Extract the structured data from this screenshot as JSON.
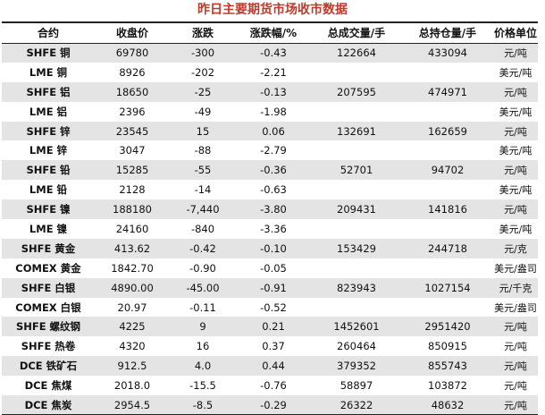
{
  "title": "昨日主要期货市场收市数据",
  "columns": {
    "contract": "合约",
    "close": "收盘价",
    "change": "涨跌",
    "change_pct": "涨跌幅/%",
    "volume": "总成交量/手",
    "open_interest": "总持仓量/手",
    "unit": "价格单位"
  },
  "rows": [
    {
      "contract": "SHFE 铜",
      "close": "69780",
      "change": "-300",
      "change_pct": "-0.43",
      "volume": "122664",
      "open_interest": "433094",
      "unit": "元/吨"
    },
    {
      "contract": "LME 铜",
      "close": "8926",
      "change": "-202",
      "change_pct": "-2.21",
      "volume": "",
      "open_interest": "",
      "unit": "美元/吨"
    },
    {
      "contract": "SHFE 铝",
      "close": "18650",
      "change": "-25",
      "change_pct": "-0.13",
      "volume": "207595",
      "open_interest": "474971",
      "unit": "元/吨"
    },
    {
      "contract": "LME 铝",
      "close": "2396",
      "change": "-49",
      "change_pct": "-1.98",
      "volume": "",
      "open_interest": "",
      "unit": "美元/吨"
    },
    {
      "contract": "SHFE 锌",
      "close": "23545",
      "change": "15",
      "change_pct": "0.06",
      "volume": "132691",
      "open_interest": "162659",
      "unit": "元/吨"
    },
    {
      "contract": "LME 锌",
      "close": "3047",
      "change": "-88",
      "change_pct": "-2.79",
      "volume": "",
      "open_interest": "",
      "unit": "美元/吨"
    },
    {
      "contract": "SHFE 铅",
      "close": "15285",
      "change": "-55",
      "change_pct": "-0.36",
      "volume": "52701",
      "open_interest": "94702",
      "unit": "元/吨"
    },
    {
      "contract": "LME 铅",
      "close": "2128",
      "change": "-14",
      "change_pct": "-0.63",
      "volume": "",
      "open_interest": "",
      "unit": "美元/吨"
    },
    {
      "contract": "SHFE 镍",
      "close": "188180",
      "change": "-7,440",
      "change_pct": "-3.80",
      "volume": "209431",
      "open_interest": "141816",
      "unit": "元/吨"
    },
    {
      "contract": "LME 镍",
      "close": "24160",
      "change": "-840",
      "change_pct": "-3.36",
      "volume": "",
      "open_interest": "",
      "unit": "美元/吨"
    },
    {
      "contract": "SHFE 黄金",
      "close": "413.62",
      "change": "-0.42",
      "change_pct": "-0.10",
      "volume": "153429",
      "open_interest": "244718",
      "unit": "元/克"
    },
    {
      "contract": "COMEX 黄金",
      "close": "1842.70",
      "change": "-0.90",
      "change_pct": "-0.05",
      "volume": "",
      "open_interest": "",
      "unit": "美元/盎司"
    },
    {
      "contract": "SHFE 白银",
      "close": "4890.00",
      "change": "-45.00",
      "change_pct": "-0.91",
      "volume": "823943",
      "open_interest": "1027154",
      "unit": "元/千克"
    },
    {
      "contract": "COMEX 白银",
      "close": "20.97",
      "change": "-0.11",
      "change_pct": "-0.52",
      "volume": "",
      "open_interest": "",
      "unit": "美元/盎司"
    },
    {
      "contract": "SHFE 螺纹钢",
      "close": "4225",
      "change": "9",
      "change_pct": "0.21",
      "volume": "1452601",
      "open_interest": "2951420",
      "unit": "元/吨"
    },
    {
      "contract": "SHFE 热卷",
      "close": "4320",
      "change": "16",
      "change_pct": "0.37",
      "volume": "260464",
      "open_interest": "850915",
      "unit": "元/吨"
    },
    {
      "contract": "DCE 铁矿石",
      "close": "912.5",
      "change": "4.0",
      "change_pct": "0.44",
      "volume": "379352",
      "open_interest": "855743",
      "unit": "元/吨"
    },
    {
      "contract": "DCE 焦煤",
      "close": "2018.0",
      "change": "-15.5",
      "change_pct": "-0.76",
      "volume": "58897",
      "open_interest": "103872",
      "unit": "元/吨"
    },
    {
      "contract": "DCE 焦炭",
      "close": "2954.5",
      "change": "-8.5",
      "change_pct": "-0.29",
      "volume": "26322",
      "open_interest": "48632",
      "unit": "元/吨"
    }
  ]
}
